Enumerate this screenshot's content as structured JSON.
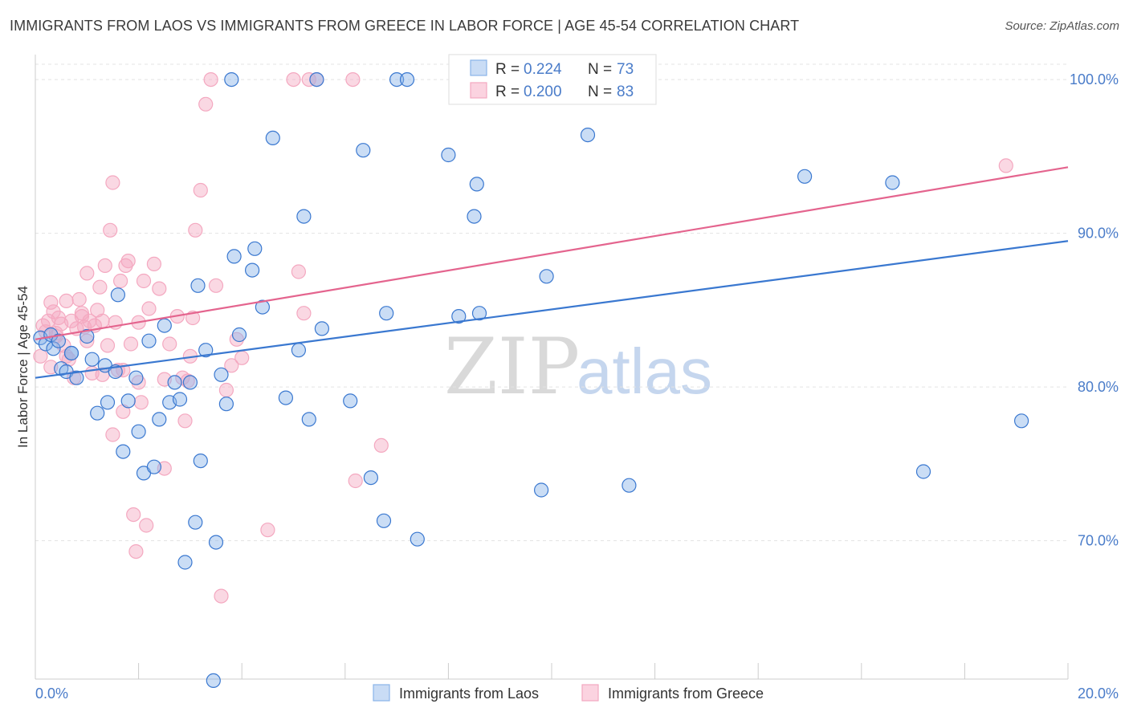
{
  "title": "IMMIGRANTS FROM LAOS VS IMMIGRANTS FROM GREECE IN LABOR FORCE | AGE 45-54 CORRELATION CHART",
  "source": "Source: ZipAtlas.com",
  "watermark": {
    "zip": "ZIP",
    "atlas": "atlas"
  },
  "colors": {
    "laos": "#8ab4e8",
    "laos_line": "#3a78d0",
    "greece": "#f4a8c0",
    "greece_line": "#e4648e",
    "tick": "#4a7cc9"
  },
  "legend": {
    "laos": {
      "r_label": "R = ",
      "r_value": "0.224",
      "n_label": "N = ",
      "n_value": "73"
    },
    "greece": {
      "r_label": "R = ",
      "r_value": "0.200",
      "n_label": "N = ",
      "n_value": "83"
    }
  },
  "chart_data": {
    "type": "scatter",
    "title": "IMMIGRANTS FROM LAOS VS IMMIGRANTS FROM GREECE IN LABOR FORCE | AGE 45-54 CORRELATION CHART",
    "xlabel": "",
    "ylabel": "In Labor Force | Age 45-54",
    "xlim": [
      0,
      20
    ],
    "ylim": [
      61,
      101
    ],
    "x_tick_labels": [
      "0.0%",
      "20.0%"
    ],
    "y_ticks": [
      70,
      80,
      90,
      100
    ],
    "y_tick_labels": [
      "70.0%",
      "80.0%",
      "90.0%",
      "100.0%"
    ],
    "series": [
      {
        "name": "Immigrants from Laos",
        "color": "#8ab4e8",
        "trend": {
          "x0": 0,
          "y0": 80.6,
          "x1": 20,
          "y1": 89.5
        },
        "points": [
          [
            0.1,
            83.2
          ],
          [
            0.2,
            82.8
          ],
          [
            0.3,
            83.4
          ],
          [
            0.35,
            82.5
          ],
          [
            0.45,
            83.0
          ],
          [
            0.5,
            81.2
          ],
          [
            0.6,
            81.0
          ],
          [
            0.7,
            82.2
          ],
          [
            0.8,
            80.6
          ],
          [
            1.0,
            83.3
          ],
          [
            1.1,
            81.8
          ],
          [
            1.2,
            78.3
          ],
          [
            1.35,
            81.4
          ],
          [
            1.4,
            79.0
          ],
          [
            1.55,
            81.0
          ],
          [
            1.6,
            86.0
          ],
          [
            1.7,
            75.8
          ],
          [
            1.8,
            79.1
          ],
          [
            1.95,
            80.6
          ],
          [
            2.0,
            77.1
          ],
          [
            2.1,
            74.4
          ],
          [
            2.2,
            83.0
          ],
          [
            2.3,
            74.8
          ],
          [
            2.4,
            77.9
          ],
          [
            2.5,
            84.0
          ],
          [
            2.6,
            79.0
          ],
          [
            2.7,
            80.3
          ],
          [
            2.8,
            79.2
          ],
          [
            2.9,
            68.6
          ],
          [
            3.0,
            80.3
          ],
          [
            3.1,
            71.2
          ],
          [
            3.15,
            86.6
          ],
          [
            3.2,
            75.2
          ],
          [
            3.3,
            82.4
          ],
          [
            3.45,
            60.9
          ],
          [
            3.5,
            69.9
          ],
          [
            3.6,
            80.8
          ],
          [
            3.7,
            78.9
          ],
          [
            3.8,
            100.0
          ],
          [
            3.85,
            88.5
          ],
          [
            3.95,
            83.4
          ],
          [
            4.2,
            87.6
          ],
          [
            4.25,
            89.0
          ],
          [
            4.4,
            85.2
          ],
          [
            4.6,
            96.2
          ],
          [
            4.85,
            79.3
          ],
          [
            5.1,
            82.4
          ],
          [
            5.2,
            91.1
          ],
          [
            5.3,
            77.9
          ],
          [
            5.45,
            100.0
          ],
          [
            5.55,
            83.8
          ],
          [
            6.1,
            79.1
          ],
          [
            6.35,
            95.4
          ],
          [
            6.5,
            74.1
          ],
          [
            6.75,
            71.3
          ],
          [
            6.8,
            84.8
          ],
          [
            7.0,
            100.0
          ],
          [
            7.2,
            100.0
          ],
          [
            7.4,
            70.1
          ],
          [
            8.0,
            95.1
          ],
          [
            8.2,
            84.6
          ],
          [
            8.5,
            91.1
          ],
          [
            8.55,
            93.2
          ],
          [
            8.6,
            84.8
          ],
          [
            9.8,
            73.3
          ],
          [
            9.9,
            87.2
          ],
          [
            10.7,
            96.4
          ],
          [
            11.5,
            73.6
          ],
          [
            14.9,
            93.7
          ],
          [
            16.6,
            93.3
          ],
          [
            17.2,
            74.5
          ],
          [
            19.1,
            77.8
          ],
          [
            0.7,
            82.2
          ]
        ]
      },
      {
        "name": "Immigrants from Greece",
        "color": "#f4a8c0",
        "trend": {
          "x0": 0,
          "y0": 83.1,
          "x1": 20,
          "y1": 94.3
        },
        "points": [
          [
            0.1,
            82.0
          ],
          [
            0.15,
            84.0
          ],
          [
            0.2,
            83.6
          ],
          [
            0.25,
            84.3
          ],
          [
            0.3,
            85.5
          ],
          [
            0.35,
            84.9
          ],
          [
            0.4,
            83.3
          ],
          [
            0.45,
            84.5
          ],
          [
            0.5,
            84.1
          ],
          [
            0.55,
            82.7
          ],
          [
            0.6,
            85.6
          ],
          [
            0.65,
            81.8
          ],
          [
            0.7,
            84.3
          ],
          [
            0.75,
            80.6
          ],
          [
            0.8,
            83.8
          ],
          [
            0.85,
            85.7
          ],
          [
            0.9,
            84.6
          ],
          [
            0.95,
            83.9
          ],
          [
            1.0,
            87.4
          ],
          [
            1.05,
            84.3
          ],
          [
            1.1,
            80.9
          ],
          [
            1.15,
            84.0
          ],
          [
            1.2,
            85.0
          ],
          [
            1.25,
            86.5
          ],
          [
            1.3,
            84.3
          ],
          [
            1.35,
            87.9
          ],
          [
            1.4,
            82.7
          ],
          [
            1.45,
            90.2
          ],
          [
            1.5,
            93.3
          ],
          [
            1.55,
            84.2
          ],
          [
            1.6,
            81.1
          ],
          [
            1.65,
            86.9
          ],
          [
            1.7,
            78.4
          ],
          [
            1.75,
            87.9
          ],
          [
            1.8,
            88.2
          ],
          [
            1.85,
            82.8
          ],
          [
            1.9,
            71.7
          ],
          [
            1.95,
            69.3
          ],
          [
            2.0,
            80.3
          ],
          [
            2.05,
            79.0
          ],
          [
            2.1,
            86.9
          ],
          [
            2.15,
            71.0
          ],
          [
            2.2,
            85.1
          ],
          [
            2.3,
            88.0
          ],
          [
            2.4,
            86.4
          ],
          [
            2.5,
            74.7
          ],
          [
            2.6,
            82.8
          ],
          [
            2.75,
            84.6
          ],
          [
            2.85,
            80.6
          ],
          [
            2.95,
            80.4
          ],
          [
            3.05,
            84.5
          ],
          [
            3.1,
            90.2
          ],
          [
            3.2,
            92.8
          ],
          [
            3.3,
            98.4
          ],
          [
            3.4,
            100.0
          ],
          [
            3.5,
            86.6
          ],
          [
            3.6,
            66.4
          ],
          [
            3.7,
            79.8
          ],
          [
            3.8,
            81.4
          ],
          [
            3.9,
            83.1
          ],
          [
            4.0,
            81.9
          ],
          [
            4.5,
            70.7
          ],
          [
            5.0,
            100.0
          ],
          [
            5.1,
            87.5
          ],
          [
            5.2,
            84.8
          ],
          [
            5.3,
            100.0
          ],
          [
            5.45,
            100.0
          ],
          [
            6.15,
            100.0
          ],
          [
            6.2,
            73.9
          ],
          [
            6.7,
            76.2
          ],
          [
            18.8,
            94.4
          ],
          [
            0.3,
            81.3
          ],
          [
            1.5,
            76.9
          ],
          [
            2.9,
            77.8
          ],
          [
            0.4,
            83.5
          ],
          [
            1.0,
            83.0
          ],
          [
            2.0,
            84.2
          ],
          [
            0.6,
            82.0
          ],
          [
            1.3,
            80.8
          ],
          [
            2.5,
            80.5
          ],
          [
            0.9,
            84.8
          ],
          [
            1.7,
            81.1
          ],
          [
            3.0,
            82.0
          ]
        ]
      }
    ]
  }
}
